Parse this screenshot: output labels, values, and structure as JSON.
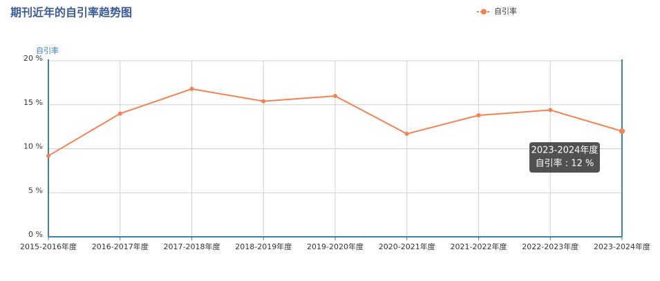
{
  "chart_data": {
    "type": "line",
    "title": "期刊近年的自引率趋势图",
    "y_axis_label": "自引率",
    "categories": [
      "2015-2016年度",
      "2016-2017年度",
      "2017-2018年度",
      "2018-2019年度",
      "2019-2020年度",
      "2020-2021年度",
      "2021-2022年度",
      "2022-2023年度",
      "2023-2024年度"
    ],
    "series": [
      {
        "name": "自引率",
        "color": "#f4814f",
        "values": [
          9.2,
          14,
          16.8,
          15.4,
          16,
          11.7,
          13.8,
          14.4,
          12
        ]
      }
    ],
    "ylim": [
      0,
      20
    ],
    "yticks": [
      {
        "value": 0,
        "label": "0 %"
      },
      {
        "value": 5,
        "label": "5 %"
      },
      {
        "value": 10,
        "label": "10 %"
      },
      {
        "value": 15,
        "label": "15 %"
      },
      {
        "value": 20,
        "label": "20 %"
      }
    ],
    "grid": true,
    "legend": "top-right",
    "tooltip": {
      "title": "2023-2024年度",
      "text": "自引率 : 12 %"
    }
  }
}
